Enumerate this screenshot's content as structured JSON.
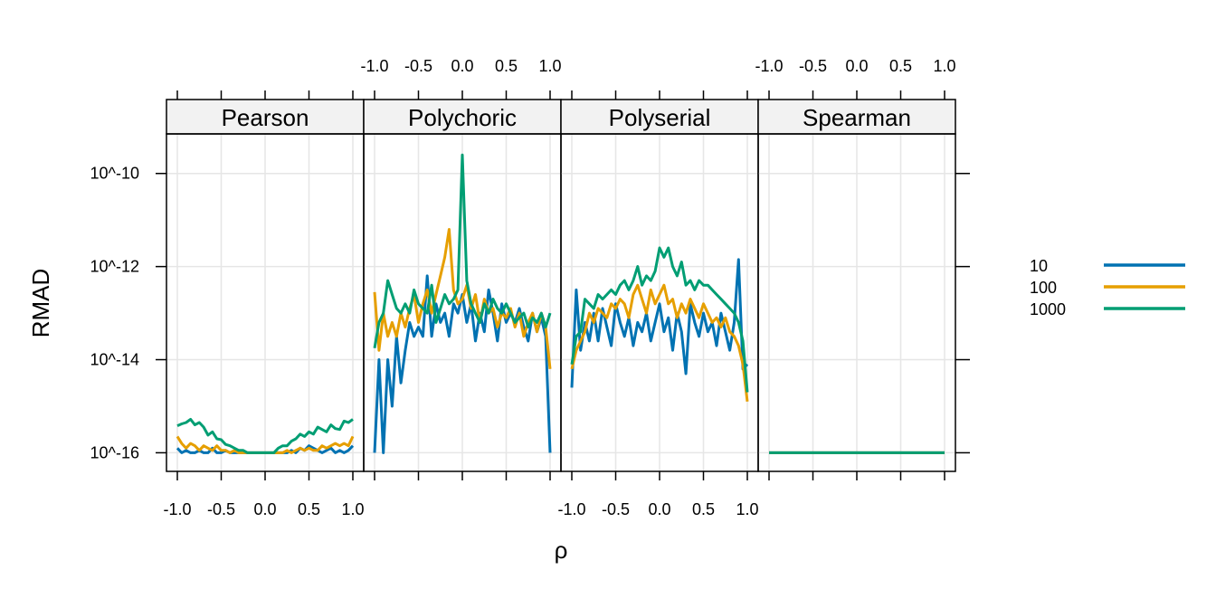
{
  "chart_data": {
    "type": "line",
    "xlabel": "ρ",
    "ylabel": "RMAD",
    "x_ticks": [
      "-1.0",
      "-0.5",
      "0.0",
      "0.5",
      "1.0"
    ],
    "y_ticks": [
      "10^-10",
      "10^-12",
      "10^-14",
      "10^-16"
    ],
    "y_tick_exponents": [
      -10,
      -12,
      -14,
      -16
    ],
    "xlim": [
      -1.0,
      1.0
    ],
    "ylim_log10": [
      -16.4,
      -9.15
    ],
    "y_scale": "log10",
    "grid": true,
    "legend_position": "right",
    "colors": {
      "10": "#0072B2",
      "100": "#E69F00",
      "1000": "#009E73"
    },
    "panels": [
      {
        "name": "Pearson",
        "series": [
          {
            "name": "10",
            "x": [
              -1.0,
              -0.95,
              -0.9,
              -0.85,
              -0.8,
              -0.75,
              -0.7,
              -0.65,
              -0.6,
              -0.55,
              -0.5,
              -0.45,
              -0.4,
              -0.35,
              -0.3,
              -0.25,
              -0.2,
              -0.15,
              -0.1,
              -0.05,
              0.0,
              0.05,
              0.1,
              0.15,
              0.2,
              0.25,
              0.3,
              0.35,
              0.4,
              0.45,
              0.5,
              0.55,
              0.6,
              0.65,
              0.7,
              0.75,
              0.8,
              0.85,
              0.9,
              0.95,
              1.0
            ],
            "y": [
              -15.9,
              -16.0,
              -15.95,
              -16.0,
              -16.0,
              -15.95,
              -16.0,
              -16.0,
              -15.9,
              -16.0,
              -16.0,
              -15.95,
              -16.0,
              -16.0,
              -16.0,
              -16.0,
              -16.0,
              -16.0,
              -16.0,
              -16.0,
              -16.0,
              -16.0,
              -16.0,
              -16.0,
              -16.0,
              -16.0,
              -15.95,
              -16.0,
              -15.9,
              -15.95,
              -15.85,
              -15.9,
              -15.95,
              -16.0,
              -15.95,
              -15.9,
              -16.0,
              -15.95,
              -16.0,
              -15.95,
              -15.85
            ]
          },
          {
            "name": "100",
            "x": [
              -1.0,
              -0.95,
              -0.9,
              -0.85,
              -0.8,
              -0.75,
              -0.7,
              -0.65,
              -0.6,
              -0.55,
              -0.5,
              -0.45,
              -0.4,
              -0.35,
              -0.3,
              -0.25,
              -0.2,
              -0.15,
              -0.1,
              -0.05,
              0.0,
              0.05,
              0.1,
              0.15,
              0.2,
              0.25,
              0.3,
              0.35,
              0.4,
              0.45,
              0.5,
              0.55,
              0.6,
              0.65,
              0.7,
              0.75,
              0.8,
              0.85,
              0.9,
              0.95,
              1.0
            ],
            "y": [
              -15.65,
              -15.8,
              -15.9,
              -15.8,
              -15.85,
              -15.95,
              -15.85,
              -15.9,
              -15.95,
              -15.85,
              -15.95,
              -15.95,
              -16.0,
              -15.95,
              -16.0,
              -16.0,
              -16.0,
              -16.0,
              -16.0,
              -16.0,
              -16.0,
              -16.0,
              -16.0,
              -16.0,
              -16.0,
              -15.95,
              -16.0,
              -15.95,
              -15.9,
              -15.95,
              -15.9,
              -15.95,
              -15.95,
              -15.85,
              -15.9,
              -15.85,
              -15.8,
              -15.85,
              -15.8,
              -15.85,
              -15.65
            ]
          },
          {
            "name": "1000",
            "x": [
              -1.0,
              -0.95,
              -0.9,
              -0.85,
              -0.8,
              -0.75,
              -0.7,
              -0.65,
              -0.6,
              -0.55,
              -0.5,
              -0.45,
              -0.4,
              -0.35,
              -0.3,
              -0.25,
              -0.2,
              -0.15,
              -0.1,
              -0.05,
              0.0,
              0.05,
              0.1,
              0.15,
              0.2,
              0.25,
              0.3,
              0.35,
              0.4,
              0.45,
              0.5,
              0.55,
              0.6,
              0.65,
              0.7,
              0.75,
              0.8,
              0.85,
              0.9,
              0.95,
              1.0
            ],
            "y": [
              -15.42,
              -15.38,
              -15.35,
              -15.28,
              -15.4,
              -15.35,
              -15.45,
              -15.62,
              -15.55,
              -15.7,
              -15.72,
              -15.82,
              -15.85,
              -15.9,
              -15.95,
              -15.95,
              -16.0,
              -16.0,
              -16.0,
              -16.0,
              -16.0,
              -16.0,
              -16.0,
              -15.9,
              -15.85,
              -15.85,
              -15.75,
              -15.7,
              -15.6,
              -15.65,
              -15.55,
              -15.6,
              -15.45,
              -15.5,
              -15.55,
              -15.4,
              -15.48,
              -15.5,
              -15.32,
              -15.35,
              -15.28
            ]
          }
        ]
      },
      {
        "name": "Polychoric",
        "series": [
          {
            "name": "10",
            "x": [
              -1.0,
              -0.95,
              -0.9,
              -0.85,
              -0.8,
              -0.75,
              -0.7,
              -0.65,
              -0.6,
              -0.55,
              -0.5,
              -0.45,
              -0.4,
              -0.35,
              -0.3,
              -0.25,
              -0.2,
              -0.15,
              -0.1,
              -0.05,
              0.0,
              0.05,
              0.1,
              0.15,
              0.2,
              0.25,
              0.3,
              0.35,
              0.4,
              0.45,
              0.5,
              0.55,
              0.6,
              0.65,
              0.7,
              0.75,
              0.8,
              0.85,
              0.9,
              0.95,
              1.0
            ],
            "y": [
              -16.0,
              -14.0,
              -16.0,
              -14.0,
              -15.0,
              -13.5,
              -14.5,
              -13.8,
              -13.2,
              -13.5,
              -13.3,
              -13.5,
              -12.2,
              -13.5,
              -12.8,
              -13.2,
              -13.0,
              -13.5,
              -12.8,
              -13.0,
              -12.6,
              -13.2,
              -12.8,
              -13.6,
              -13.0,
              -13.4,
              -12.5,
              -13.0,
              -13.6,
              -12.8,
              -13.2,
              -13.0,
              -13.2,
              -12.9,
              -13.3,
              -13.6,
              -13.0,
              -13.4,
              -13.1,
              -13.5,
              -16.0
            ]
          },
          {
            "name": "100",
            "x": [
              -1.0,
              -0.95,
              -0.9,
              -0.85,
              -0.8,
              -0.75,
              -0.7,
              -0.65,
              -0.6,
              -0.55,
              -0.5,
              -0.45,
              -0.4,
              -0.35,
              -0.3,
              -0.25,
              -0.2,
              -0.15,
              -0.1,
              -0.05,
              0.0,
              0.05,
              0.1,
              0.15,
              0.2,
              0.25,
              0.3,
              0.35,
              0.4,
              0.45,
              0.5,
              0.55,
              0.6,
              0.65,
              0.7,
              0.75,
              0.8,
              0.85,
              0.9,
              0.95,
              1.0
            ],
            "y": [
              -12.55,
              -13.8,
              -13.0,
              -13.5,
              -13.2,
              -13.5,
              -13.0,
              -13.3,
              -12.9,
              -12.6,
              -13.2,
              -12.8,
              -12.5,
              -13.0,
              -12.6,
              -12.2,
              -11.8,
              -11.2,
              -12.5,
              -12.8,
              -12.7,
              -12.4,
              -12.9,
              -12.6,
              -13.2,
              -12.7,
              -13.0,
              -12.9,
              -13.3,
              -13.0,
              -13.1,
              -12.9,
              -13.3,
              -13.0,
              -13.5,
              -13.2,
              -13.0,
              -13.4,
              -13.0,
              -13.3,
              -14.2
            ]
          },
          {
            "name": "1000",
            "x": [
              -1.0,
              -0.95,
              -0.9,
              -0.85,
              -0.8,
              -0.75,
              -0.7,
              -0.65,
              -0.6,
              -0.55,
              -0.5,
              -0.45,
              -0.4,
              -0.35,
              -0.3,
              -0.25,
              -0.2,
              -0.15,
              -0.1,
              -0.05,
              0.0,
              0.05,
              0.1,
              0.15,
              0.2,
              0.25,
              0.3,
              0.35,
              0.4,
              0.45,
              0.5,
              0.55,
              0.6,
              0.65,
              0.7,
              0.75,
              0.8,
              0.85,
              0.9,
              0.95,
              1.0
            ],
            "y": [
              -13.75,
              -13.2,
              -13.0,
              -12.3,
              -12.6,
              -12.9,
              -13.0,
              -12.8,
              -13.0,
              -12.5,
              -12.8,
              -12.9,
              -13.0,
              -12.4,
              -13.2,
              -12.9,
              -12.6,
              -12.8,
              -12.7,
              -12.5,
              -9.6,
              -12.3,
              -12.8,
              -13.0,
              -13.2,
              -12.8,
              -13.0,
              -12.7,
              -12.9,
              -13.0,
              -12.8,
              -13.0,
              -13.2,
              -13.1,
              -13.0,
              -13.3,
              -13.1,
              -13.2,
              -13.0,
              -13.3,
              -13.0
            ]
          }
        ]
      },
      {
        "name": "Polyserial",
        "series": [
          {
            "name": "10",
            "x": [
              -1.0,
              -0.95,
              -0.9,
              -0.85,
              -0.8,
              -0.75,
              -0.7,
              -0.65,
              -0.6,
              -0.55,
              -0.5,
              -0.45,
              -0.4,
              -0.35,
              -0.3,
              -0.25,
              -0.2,
              -0.15,
              -0.1,
              -0.05,
              0.0,
              0.05,
              0.1,
              0.15,
              0.2,
              0.25,
              0.3,
              0.35,
              0.4,
              0.45,
              0.5,
              0.55,
              0.6,
              0.65,
              0.7,
              0.75,
              0.8,
              0.85,
              0.9,
              0.95,
              1.0
            ],
            "y": [
              -14.6,
              -12.5,
              -13.8,
              -13.2,
              -13.6,
              -13.0,
              -13.6,
              -12.9,
              -13.3,
              -13.7,
              -12.8,
              -13.2,
              -13.5,
              -13.1,
              -13.7,
              -13.2,
              -13.4,
              -13.0,
              -13.6,
              -13.2,
              -12.8,
              -13.4,
              -13.1,
              -13.8,
              -13.0,
              -13.4,
              -14.3,
              -12.8,
              -13.2,
              -13.5,
              -13.0,
              -13.4,
              -13.2,
              -13.7,
              -13.0,
              -13.4,
              -13.8,
              -13.2,
              -11.85,
              -14.2,
              -14.1
            ]
          },
          {
            "name": "100",
            "x": [
              -1.0,
              -0.95,
              -0.9,
              -0.85,
              -0.8,
              -0.75,
              -0.7,
              -0.65,
              -0.6,
              -0.55,
              -0.5,
              -0.45,
              -0.4,
              -0.35,
              -0.3,
              -0.25,
              -0.2,
              -0.15,
              -0.1,
              -0.05,
              0.0,
              0.05,
              0.1,
              0.15,
              0.2,
              0.25,
              0.3,
              0.35,
              0.4,
              0.45,
              0.5,
              0.55,
              0.6,
              0.65,
              0.7,
              0.75,
              0.8,
              0.85,
              0.9,
              0.95,
              1.0
            ],
            "y": [
              -14.2,
              -13.8,
              -13.6,
              -13.4,
              -13.0,
              -13.2,
              -12.9,
              -13.0,
              -13.1,
              -12.8,
              -12.9,
              -12.7,
              -12.8,
              -13.1,
              -12.6,
              -12.4,
              -12.7,
              -13.0,
              -12.5,
              -12.8,
              -12.6,
              -12.4,
              -12.8,
              -12.7,
              -13.1,
              -12.8,
              -13.0,
              -12.7,
              -12.9,
              -13.1,
              -12.8,
              -13.0,
              -13.2,
              -13.1,
              -13.3,
              -13.1,
              -13.4,
              -13.5,
              -13.7,
              -14.1,
              -14.9
            ]
          },
          {
            "name": "1000",
            "x": [
              -1.0,
              -0.95,
              -0.9,
              -0.85,
              -0.8,
              -0.75,
              -0.7,
              -0.65,
              -0.6,
              -0.55,
              -0.5,
              -0.45,
              -0.4,
              -0.35,
              -0.3,
              -0.25,
              -0.2,
              -0.15,
              -0.1,
              -0.05,
              0.0,
              0.05,
              0.1,
              0.15,
              0.2,
              0.25,
              0.3,
              0.35,
              0.4,
              0.45,
              0.5,
              0.55,
              0.6,
              0.65,
              0.7,
              0.75,
              0.8,
              0.85,
              0.9,
              0.95,
              1.0
            ],
            "y": [
              -14.1,
              -13.5,
              -13.4,
              -12.7,
              -12.8,
              -12.9,
              -12.6,
              -12.7,
              -12.6,
              -12.5,
              -12.6,
              -12.4,
              -12.3,
              -12.5,
              -12.3,
              -12.0,
              -12.4,
              -12.2,
              -12.3,
              -12.1,
              -11.6,
              -11.8,
              -11.6,
              -12.0,
              -12.2,
              -11.9,
              -12.4,
              -12.3,
              -12.5,
              -12.3,
              -12.4,
              -12.4,
              -12.5,
              -12.6,
              -12.7,
              -12.8,
              -12.9,
              -13.0,
              -13.2,
              -13.6,
              -14.7
            ]
          }
        ]
      },
      {
        "name": "Spearman",
        "series": [
          {
            "name": "10",
            "x": [
              -1.0,
              1.0
            ],
            "y": [
              -16.0,
              -16.0
            ]
          },
          {
            "name": "100",
            "x": [
              -1.0,
              1.0
            ],
            "y": [
              -16.0,
              -16.0
            ]
          },
          {
            "name": "1000",
            "x": [
              -1.0,
              1.0
            ],
            "y": [
              -16.0,
              -16.0
            ]
          }
        ]
      }
    ],
    "legend": [
      "10",
      "100",
      "1000"
    ]
  }
}
